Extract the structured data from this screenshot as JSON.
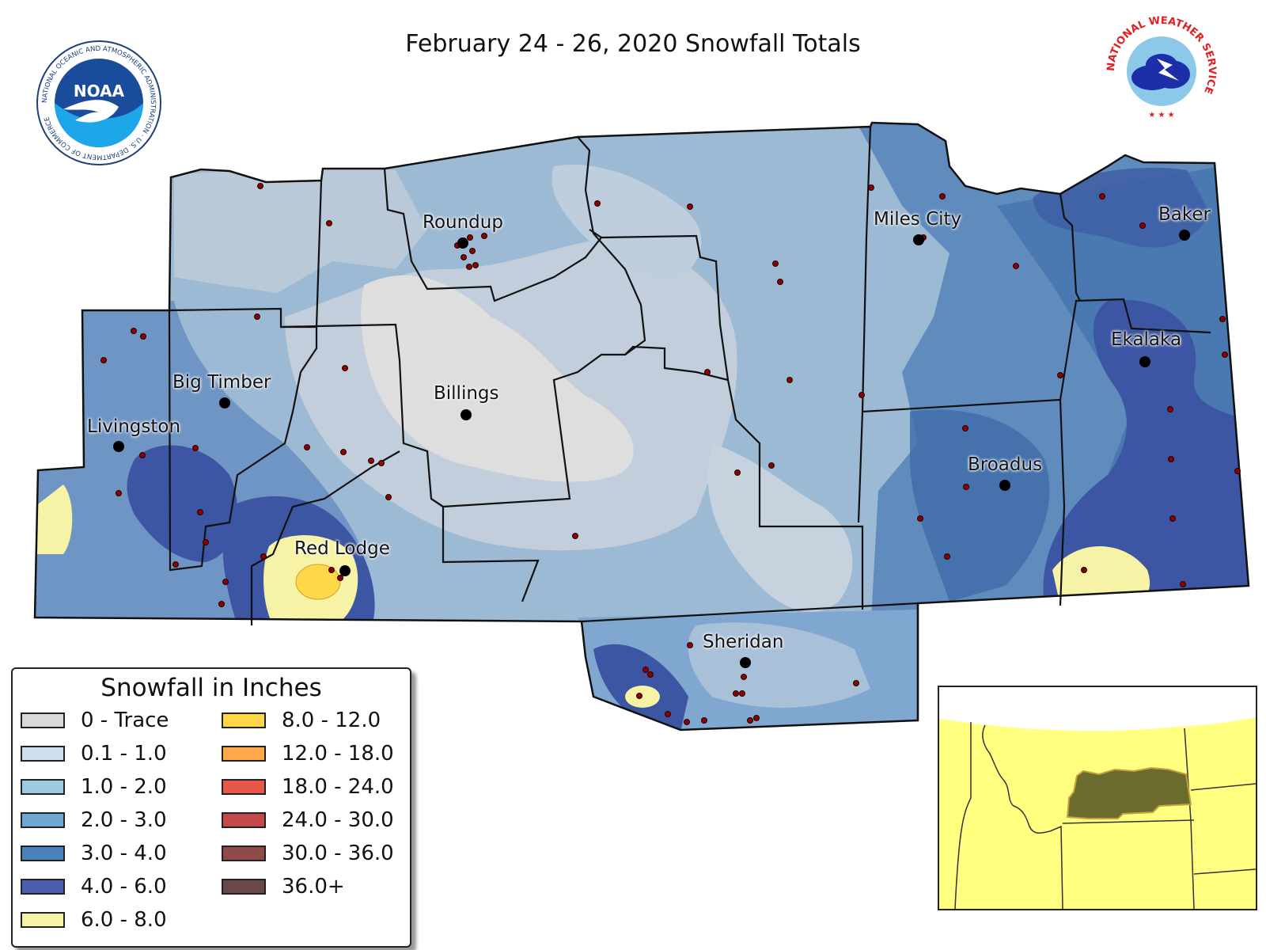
{
  "title": "February 24 - 26, 2020 Snowfall Totals",
  "logos": {
    "noaa_text": "NOAA",
    "noaa_ring": "NATIONAL OCEANIC AND ATMOSPHERIC ADMINISTRATION · U.S. DEPARTMENT OF COMMERCE",
    "nws_ring": "NATIONAL WEATHER SERVICE"
  },
  "cities": [
    {
      "name": "Roundup"
    },
    {
      "name": "Miles City"
    },
    {
      "name": "Baker"
    },
    {
      "name": "Big Timber"
    },
    {
      "name": "Billings"
    },
    {
      "name": "Livingston"
    },
    {
      "name": "Ekalaka"
    },
    {
      "name": "Broadus"
    },
    {
      "name": "Red Lodge"
    },
    {
      "name": "Sheridan"
    }
  ],
  "legend": {
    "title": "Snowfall in Inches",
    "items": [
      {
        "label": "0 - Trace",
        "color": "#d9d9d9"
      },
      {
        "label": "0.1 - 1.0",
        "color": "#cfe1ef"
      },
      {
        "label": "1.0 - 2.0",
        "color": "#9ecae1"
      },
      {
        "label": "2.0 - 3.0",
        "color": "#6fa7d1"
      },
      {
        "label": "3.0 - 4.0",
        "color": "#4a81b8"
      },
      {
        "label": "4.0 - 6.0",
        "color": "#4a5bb0"
      },
      {
        "label": "6.0 - 8.0",
        "color": "#f6f3a6"
      },
      {
        "label": "8.0 - 12.0",
        "color": "#ffd84a"
      },
      {
        "label": "12.0 - 18.0",
        "color": "#ffa94a"
      },
      {
        "label": "18.0 - 24.0",
        "color": "#e8584a"
      },
      {
        "label": "24.0 - 30.0",
        "color": "#c24a4a"
      },
      {
        "label": "30.0 - 36.0",
        "color": "#8f4a4a"
      },
      {
        "label": "36.0+",
        "color": "#6b4848"
      }
    ]
  },
  "colors": {
    "border": "#111111",
    "station_dot": "#8b0000",
    "inset_states": "#ffff80",
    "inset_region": "#6b6b2e"
  }
}
